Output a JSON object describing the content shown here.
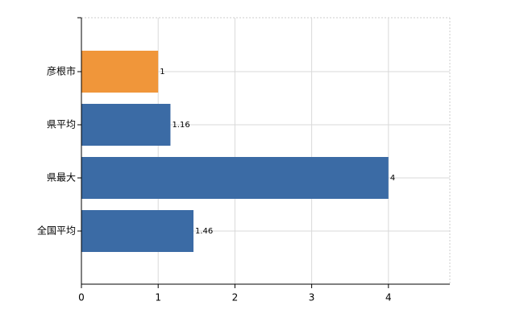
{
  "chart_data": {
    "type": "bar",
    "orientation": "horizontal",
    "categories": [
      "彦根市",
      "県平均",
      "県最大",
      "全国平均"
    ],
    "values": [
      1,
      1.16,
      4,
      1.46
    ],
    "colors": [
      "#f0963a",
      "#3b6ba5",
      "#3b6ba5",
      "#3b6ba5"
    ],
    "xlim": [
      0,
      4.8
    ],
    "xticks": [
      0,
      1,
      2,
      3,
      4
    ],
    "grid": true
  }
}
